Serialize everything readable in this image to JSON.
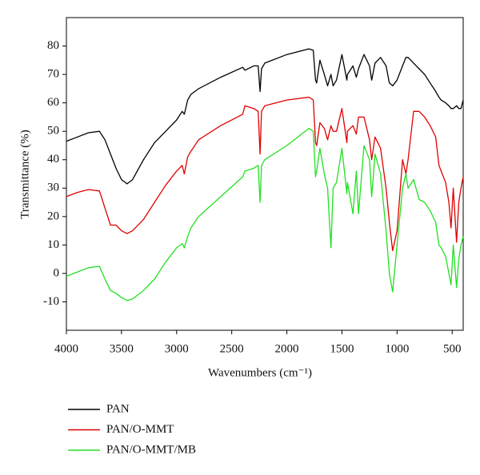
{
  "chart_data": {
    "type": "line",
    "x_label": "Wavenumbers (cm⁻¹)",
    "y_label": "Transmittance (%)",
    "x": [
      4000,
      3900,
      3800,
      3700,
      3650,
      3600,
      3550,
      3500,
      3450,
      3400,
      3300,
      3200,
      3100,
      3000,
      2950,
      2930,
      2900,
      2870,
      2800,
      2600,
      2400,
      2380,
      2300,
      2260,
      2243,
      2230,
      2200,
      2000,
      1800,
      1760,
      1740,
      1730,
      1700,
      1660,
      1630,
      1600,
      1580,
      1550,
      1500,
      1455,
      1450,
      1400,
      1370,
      1350,
      1300,
      1250,
      1230,
      1200,
      1150,
      1100,
      1070,
      1040,
      1000,
      950,
      920,
      900,
      850,
      800,
      750,
      700,
      650,
      620,
      600,
      560,
      530,
      510,
      490,
      460,
      440,
      420,
      400
    ],
    "series": [
      {
        "name": "PAN",
        "color": "#000000",
        "values": [
          46.5,
          48,
          49.5,
          50,
          47,
          42,
          37,
          33,
          31.5,
          33,
          40,
          46,
          50,
          54,
          57,
          56,
          61,
          63,
          65,
          69,
          72.5,
          71.5,
          73,
          73,
          64,
          72,
          74,
          77,
          79,
          78.5,
          68,
          67,
          75,
          70,
          66,
          70,
          66,
          68,
          77,
          68,
          70,
          73,
          69,
          72,
          77,
          73,
          68,
          74,
          76,
          73,
          67,
          66,
          68,
          73,
          76,
          76,
          74,
          72,
          70,
          67,
          64,
          62,
          61,
          60,
          59,
          58,
          58,
          59,
          58,
          58,
          61
        ]
      },
      {
        "name": "PAN/O-MMT",
        "color": "#e00000",
        "values": [
          27,
          28.5,
          29.5,
          29,
          23,
          17,
          17,
          15,
          14,
          15,
          19,
          25,
          31,
          36,
          38,
          35,
          41,
          43,
          47,
          52,
          56,
          59,
          58,
          57,
          42,
          57,
          59,
          61,
          62,
          61,
          46,
          45,
          53,
          51,
          47,
          52,
          50,
          50,
          58,
          46,
          50,
          52,
          49,
          55,
          55,
          47,
          40,
          48,
          44,
          30,
          18,
          8,
          15,
          40,
          35,
          40,
          57,
          57,
          55,
          52,
          48,
          38,
          36,
          32,
          25,
          16,
          30,
          11,
          25,
          30,
          34
        ]
      },
      {
        "name": "PAN/O-MMT/MB",
        "color": "#22e022",
        "values": [
          -1,
          0.5,
          2,
          2.5,
          -2,
          -6,
          -7,
          -8.5,
          -9.5,
          -9,
          -6,
          -2,
          4,
          9,
          10.5,
          9,
          13,
          16,
          20,
          27,
          34,
          36,
          37,
          38,
          25,
          38,
          40,
          45,
          51,
          50,
          34,
          36,
          44,
          35,
          30,
          9,
          30,
          32,
          44,
          28,
          32,
          21,
          36,
          21,
          45,
          40,
          27,
          42,
          35,
          15,
          0,
          -6.5,
          10,
          30,
          35,
          30,
          33,
          26,
          25,
          22,
          18,
          10,
          9,
          6,
          0,
          -4,
          10,
          -5,
          5,
          10,
          13
        ]
      }
    ],
    "xlim": [
      4000,
      400
    ],
    "xticks": [
      4000,
      3500,
      3000,
      2500,
      2000,
      1500,
      1000,
      500
    ],
    "ylim": [
      -20,
      90
    ],
    "yticks": [
      -10,
      0,
      10,
      20,
      30,
      40,
      50,
      60,
      70,
      80
    ],
    "legend": "bottom"
  }
}
